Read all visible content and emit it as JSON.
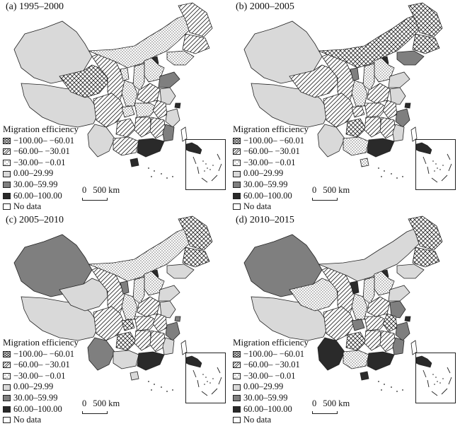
{
  "legend": {
    "title": "Migration efficiency",
    "items": [
      {
        "label": "−100.00– −60.01",
        "pattern": "crosshatch"
      },
      {
        "label": "−60.00– −30.01",
        "pattern": "diagonal"
      },
      {
        "label": "−30.00– −0.01",
        "pattern": "dots"
      },
      {
        "label": "0.00–29.99",
        "pattern": "light-gray"
      },
      {
        "label": "30.00–59.99",
        "pattern": "mid-gray"
      },
      {
        "label": "60.00–100.00",
        "pattern": "dark"
      },
      {
        "label": "No data",
        "pattern": "white"
      }
    ]
  },
  "scale": {
    "zero": "0",
    "label": "500 km"
  },
  "colors": {
    "light-gray": "#d9d9d9",
    "mid-gray": "#7f7f7f",
    "dark": "#2a2a2a",
    "white": "#ffffff",
    "stroke": "#222222"
  },
  "panels": [
    {
      "title": "(a) 1995–2000",
      "regions": {
        "xinjiang": "light-gray",
        "tibet": "light-gray",
        "qinghai": "crosshatch",
        "gansu": "diagonal",
        "innermongolia": "dots",
        "heilongjiang": "diagonal",
        "jilin": "diagonal",
        "liaoning": "dots",
        "beijing": "dark",
        "hebei": "dots",
        "shanxi": "dots",
        "shandong": "mid-gray",
        "ningxia": "dots",
        "shaanxi": "dots",
        "henan": "diagonal",
        "jiangsu": "light-gray",
        "shanghai": "dark",
        "sichuan": "diagonal",
        "chongqing": "dots",
        "hubei": "dots",
        "anhui": "diagonal",
        "zhejiang": "light-gray",
        "yunnan": "light-gray",
        "guizhou": "diagonal",
        "hunan": "diagonal",
        "jiangxi": "diagonal",
        "fujian": "mid-gray",
        "guangxi": "diagonal",
        "guangdong": "dark",
        "hainan": "dark",
        "taiwan": "white"
      }
    },
    {
      "title": "(b) 2000–2005",
      "regions": {
        "xinjiang": "light-gray",
        "tibet": "light-gray",
        "qinghai": "diagonal",
        "gansu": "diagonal",
        "innermongolia": "crosshatch",
        "heilongjiang": "crosshatch",
        "jilin": "crosshatch",
        "liaoning": "mid-gray",
        "beijing": "dark",
        "hebei": "dots",
        "shanxi": "dots",
        "shandong": "light-gray",
        "ningxia": "mid-gray",
        "shaanxi": "dots",
        "henan": "diagonal",
        "jiangsu": "light-gray",
        "shanghai": "dark",
        "sichuan": "diagonal",
        "chongqing": "diagonal",
        "hubei": "diagonal",
        "anhui": "diagonal",
        "zhejiang": "mid-gray",
        "yunnan": "light-gray",
        "guizhou": "crosshatch",
        "hunan": "diagonal",
        "jiangxi": "diagonal",
        "fujian": "light-gray",
        "guangxi": "dots",
        "guangdong": "dark",
        "hainan": "dots",
        "taiwan": "white"
      }
    },
    {
      "title": "(c) 2005–2010",
      "regions": {
        "xinjiang": "mid-gray",
        "tibet": "light-gray",
        "qinghai": "light-gray",
        "gansu": "diagonal",
        "innermongolia": "dots",
        "heilongjiang": "crosshatch",
        "jilin": "crosshatch",
        "liaoning": "light-gray",
        "beijing": "dark",
        "hebei": "dots",
        "shanxi": "dots",
        "shandong": "light-gray",
        "ningxia": "mid-gray",
        "shaanxi": "dots",
        "henan": "diagonal",
        "jiangsu": "light-gray",
        "shanghai": "mid-gray",
        "sichuan": "diagonal",
        "chongqing": "crosshatch",
        "hubei": "diagonal",
        "anhui": "diagonal",
        "zhejiang": "mid-gray",
        "yunnan": "mid-gray",
        "guizhou": "crosshatch",
        "hunan": "diagonal",
        "jiangxi": "diagonal",
        "fujian": "light-gray",
        "guangxi": "light-gray",
        "guangdong": "dark",
        "hainan": "light-gray",
        "taiwan": "white"
      }
    },
    {
      "title": "(d) 2010–2015",
      "regions": {
        "xinjiang": "mid-gray",
        "tibet": "light-gray",
        "qinghai": "dots",
        "gansu": "diagonal",
        "innermongolia": "light-gray",
        "heilongjiang": "crosshatch",
        "jilin": "crosshatch",
        "liaoning": "light-gray",
        "beijing": "dark",
        "hebei": "dots",
        "shanxi": "dots",
        "shandong": "light-gray",
        "ningxia": "dark",
        "shaanxi": "dots",
        "henan": "diagonal",
        "jiangsu": "mid-gray",
        "shanghai": "dark",
        "sichuan": "diagonal",
        "chongqing": "mid-gray",
        "hubei": "diagonal",
        "anhui": "crosshatch",
        "zhejiang": "mid-gray",
        "yunnan": "dark",
        "guizhou": "crosshatch",
        "hunan": "diagonal",
        "jiangxi": "diagonal",
        "fujian": "mid-gray",
        "guangxi": "dots",
        "guangdong": "dark",
        "hainan": "dark",
        "taiwan": "white"
      }
    }
  ]
}
